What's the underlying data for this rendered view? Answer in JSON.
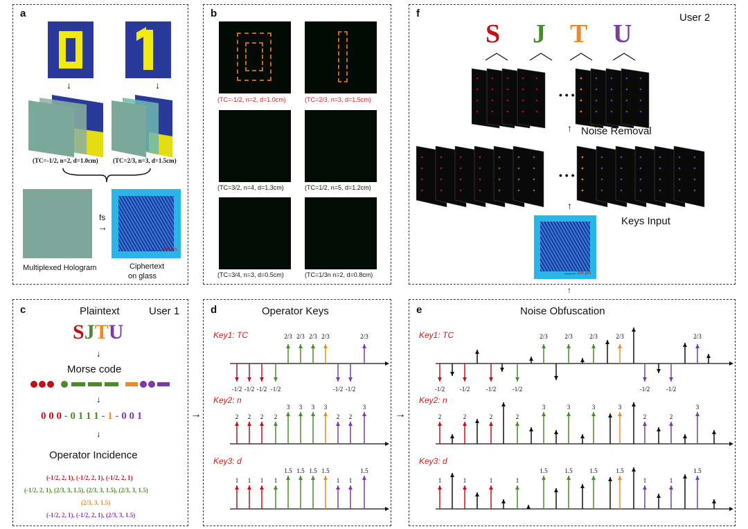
{
  "panels": {
    "a": {
      "label": "a",
      "digit0": "0",
      "digit1": "1",
      "caption_left": "(TC=-1/2, n=2, d=1.0cm)",
      "caption_right": "(TC=2/3, n=3, d=1.5cm)",
      "fs": "fs",
      "scale": "200 μm",
      "multiplexed": "Multiplexed Hologram",
      "ciphertext1": "Ciphertext",
      "ciphertext2": "on glass"
    },
    "b": {
      "label": "b",
      "captions": [
        "(TC=-1/2, n=2, d=1.0cm)",
        "(TC=2/3, n=3, d=1.5cm)",
        "(TC=3/2, n=4, d=1.3cm)",
        "(TC=1/2, n=5, d=1.2cm)",
        "(TC=3/4, n=3, d=0.5cm)",
        "(TC=1/3n n=2, d=0.8cm)"
      ]
    },
    "c": {
      "label": "c",
      "title": "Plaintext",
      "user": "User 1",
      "letters": [
        "S",
        "J",
        "T",
        "U"
      ],
      "morse_title": "Morse code",
      "binary": [
        "0 0 0",
        "-",
        "0 1 1 1",
        "-",
        "1",
        "-",
        "0 0 1"
      ],
      "incidence_title": "Operator Incidence",
      "incidence_lines": [
        "(-1/2, 2, 1), (-1/2, 2, 1), (-1/2, 2, 1)",
        "(-1/2, 2, 1), (2/3, 3, 1.5), (2/3, 3, 1.5), (2/3, 3, 1.5)",
        "(2/3, 3, 1.5)",
        "(-1/2, 2, 1), (-1/2, 2, 1), (2/3, 3, 1.5)"
      ]
    },
    "d": {
      "label": "d",
      "title": "Operator Keys",
      "key1": "Key1: TC",
      "key2": "Key2: n",
      "key3": "Key3: d"
    },
    "e": {
      "label": "e",
      "title": "Noise Obfuscation",
      "key1": "Key1: TC",
      "key2": "Key2: n",
      "key3": "Key3: d"
    },
    "f": {
      "label": "f",
      "user": "User 2",
      "letters": [
        "S",
        "J",
        "T",
        "U"
      ],
      "dots": "• • •",
      "noise_removal": "Noise Removal",
      "keys_input": "Keys Input",
      "scale": "200 μm"
    }
  },
  "keys_d": {
    "tc_labels": [
      "-1/2",
      "-1/2",
      "-1/2",
      "-1/2",
      "2/3",
      "2/3",
      "2/3",
      "2/3",
      "-1/2",
      "-1/2",
      "2/3"
    ],
    "n_labels": [
      "2",
      "2",
      "2",
      "2",
      "3",
      "3",
      "3",
      "3",
      "2",
      "2",
      "3"
    ],
    "d_labels": [
      "1",
      "1",
      "1",
      "1",
      "1.5",
      "1.5",
      "1.5",
      "1.5",
      "1",
      "1",
      "1.5"
    ]
  },
  "keys_e": {
    "tc_labels": [
      "-1/2",
      "-1/2",
      "-1/2",
      "-1/2",
      "2/3",
      "2/3",
      "2/3",
      "2/3",
      "-1/2",
      "-1/2",
      "2/3"
    ],
    "n_labels": [
      "2",
      "2",
      "2",
      "2",
      "3",
      "3",
      "3",
      "3",
      "2",
      "2",
      "3"
    ],
    "d_labels": [
      "1",
      "1",
      "1",
      "1",
      "1.5",
      "1.5",
      "1.5",
      "1.5",
      "1",
      "1",
      "1.5"
    ]
  },
  "colors": {
    "red": "#c0111a",
    "green": "#4a8a2a",
    "orange": "#e88a2a",
    "purple": "#7b3aa8",
    "blue": "#2a3a9a",
    "yellow": "#f2ea10"
  }
}
